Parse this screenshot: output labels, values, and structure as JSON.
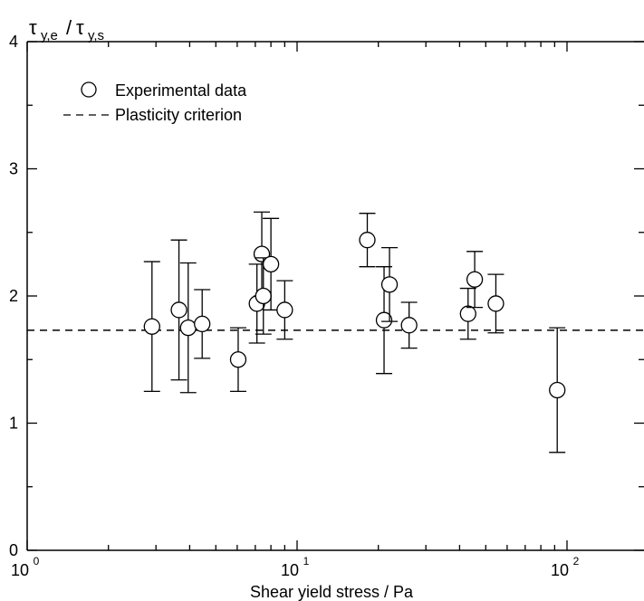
{
  "chart_data": {
    "type": "scatter",
    "title": "",
    "xlabel": "Shear yield stress / Pa",
    "ylabel_main": "τ",
    "ylabel_sub_num": "y,e",
    "ylabel_sub_den": "y,s",
    "xscale": "log",
    "xlim": [
      1,
      200
    ],
    "ylim": [
      0,
      4
    ],
    "x_ticks": [
      {
        "value": 1,
        "base": "10",
        "exp": "0"
      },
      {
        "value": 10,
        "base": "10",
        "exp": "1"
      },
      {
        "value": 100,
        "base": "10",
        "exp": "2"
      }
    ],
    "y_ticks": [
      {
        "value": 0,
        "label": "0"
      },
      {
        "value": 1,
        "label": "1"
      },
      {
        "value": 2,
        "label": "2"
      },
      {
        "value": 3,
        "label": "3"
      },
      {
        "value": 4,
        "label": "4"
      }
    ],
    "grid": false,
    "legend_position": "top-left",
    "series": [
      {
        "name": "Experimental data",
        "marker": "open-circle",
        "points": [
          {
            "x": 2.9,
            "y": 1.76,
            "ylo": 1.25,
            "yhi": 2.27
          },
          {
            "x": 3.65,
            "y": 1.89,
            "ylo": 1.34,
            "yhi": 2.44
          },
          {
            "x": 3.95,
            "y": 1.75,
            "ylo": 1.24,
            "yhi": 2.26
          },
          {
            "x": 4.45,
            "y": 1.78,
            "ylo": 1.51,
            "yhi": 2.05
          },
          {
            "x": 6.05,
            "y": 1.5,
            "ylo": 1.25,
            "yhi": 1.75
          },
          {
            "x": 7.1,
            "y": 1.94,
            "ylo": 1.63,
            "yhi": 2.25
          },
          {
            "x": 7.4,
            "y": 2.33,
            "ylo": 2.0,
            "yhi": 2.66
          },
          {
            "x": 7.5,
            "y": 2.0,
            "ylo": 1.7,
            "yhi": 2.3
          },
          {
            "x": 8.0,
            "y": 2.25,
            "ylo": 1.89,
            "yhi": 2.61
          },
          {
            "x": 9.0,
            "y": 1.89,
            "ylo": 1.66,
            "yhi": 2.12
          },
          {
            "x": 18.2,
            "y": 2.44,
            "ylo": 2.23,
            "yhi": 2.65
          },
          {
            "x": 21.0,
            "y": 1.81,
            "ylo": 1.39,
            "yhi": 2.23
          },
          {
            "x": 22.0,
            "y": 2.09,
            "ylo": 1.8,
            "yhi": 2.38
          },
          {
            "x": 26.0,
            "y": 1.77,
            "ylo": 1.59,
            "yhi": 1.95
          },
          {
            "x": 43.0,
            "y": 1.86,
            "ylo": 1.66,
            "yhi": 2.06
          },
          {
            "x": 45.5,
            "y": 2.13,
            "ylo": 1.91,
            "yhi": 2.35
          },
          {
            "x": 54.5,
            "y": 1.94,
            "ylo": 1.71,
            "yhi": 2.17
          },
          {
            "x": 92.0,
            "y": 1.26,
            "ylo": 0.77,
            "yhi": 1.75
          }
        ]
      },
      {
        "name": "Plasticity criterion",
        "line_style": "dashed",
        "y_constant": 1.73
      }
    ]
  }
}
